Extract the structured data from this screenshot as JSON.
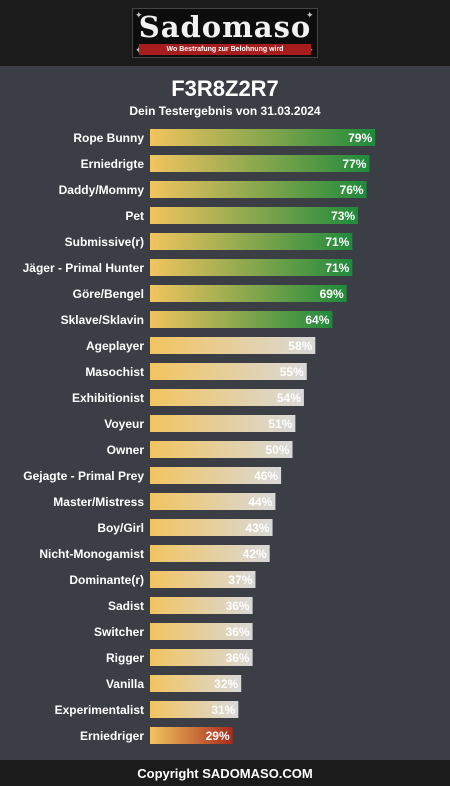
{
  "logo": {
    "text": "Sadomaso",
    "tagline": "Wo Bestrafung zur Belohnung wird"
  },
  "header": {
    "code": "F3R8Z2R7",
    "subtitle": "Dein Testergebnis von 31.03.2024"
  },
  "colors": {
    "bar_start": "#f2c45f",
    "high_end": "#1f8a3c",
    "mid_end": "#d9d9d9",
    "low_end": "#a82a1c"
  },
  "chart_data": {
    "type": "bar",
    "orientation": "horizontal",
    "unit": "%",
    "xlim": [
      0,
      100
    ],
    "categories": [
      "Rope Bunny",
      "Erniedrigte",
      "Daddy/Mommy",
      "Pet",
      "Submissive(r)",
      "Jäger - Primal Hunter",
      "Göre/Bengel",
      "Sklave/Sklavin",
      "Ageplayer",
      "Masochist",
      "Exhibitionist",
      "Voyeur",
      "Owner",
      "Gejagte - Primal Prey",
      "Master/Mistress",
      "Boy/Girl",
      "Nicht-Monogamist",
      "Dominante(r)",
      "Sadist",
      "Switcher",
      "Rigger",
      "Vanilla",
      "Experimentalist",
      "Erniedriger"
    ],
    "values": [
      79,
      77,
      76,
      73,
      71,
      71,
      69,
      64,
      58,
      55,
      54,
      51,
      50,
      46,
      44,
      43,
      42,
      37,
      36,
      36,
      36,
      32,
      31,
      29
    ],
    "value_labels": [
      "79%",
      "77%",
      "76%",
      "73%",
      "71%",
      "71%",
      "69%",
      "64%",
      "58%",
      "55%",
      "54%",
      "51%",
      "50%",
      "46%",
      "44%",
      "43%",
      "42%",
      "37%",
      "36%",
      "36%",
      "36%",
      "32%",
      "31%",
      "29%"
    ],
    "tier": [
      "high",
      "high",
      "high",
      "high",
      "high",
      "high",
      "high",
      "high",
      "mid",
      "mid",
      "mid",
      "mid",
      "mid",
      "mid",
      "mid",
      "mid",
      "mid",
      "mid",
      "mid",
      "mid",
      "mid",
      "mid",
      "mid",
      "low"
    ]
  },
  "footer": {
    "text": "Copyright SADOMASO.COM"
  }
}
